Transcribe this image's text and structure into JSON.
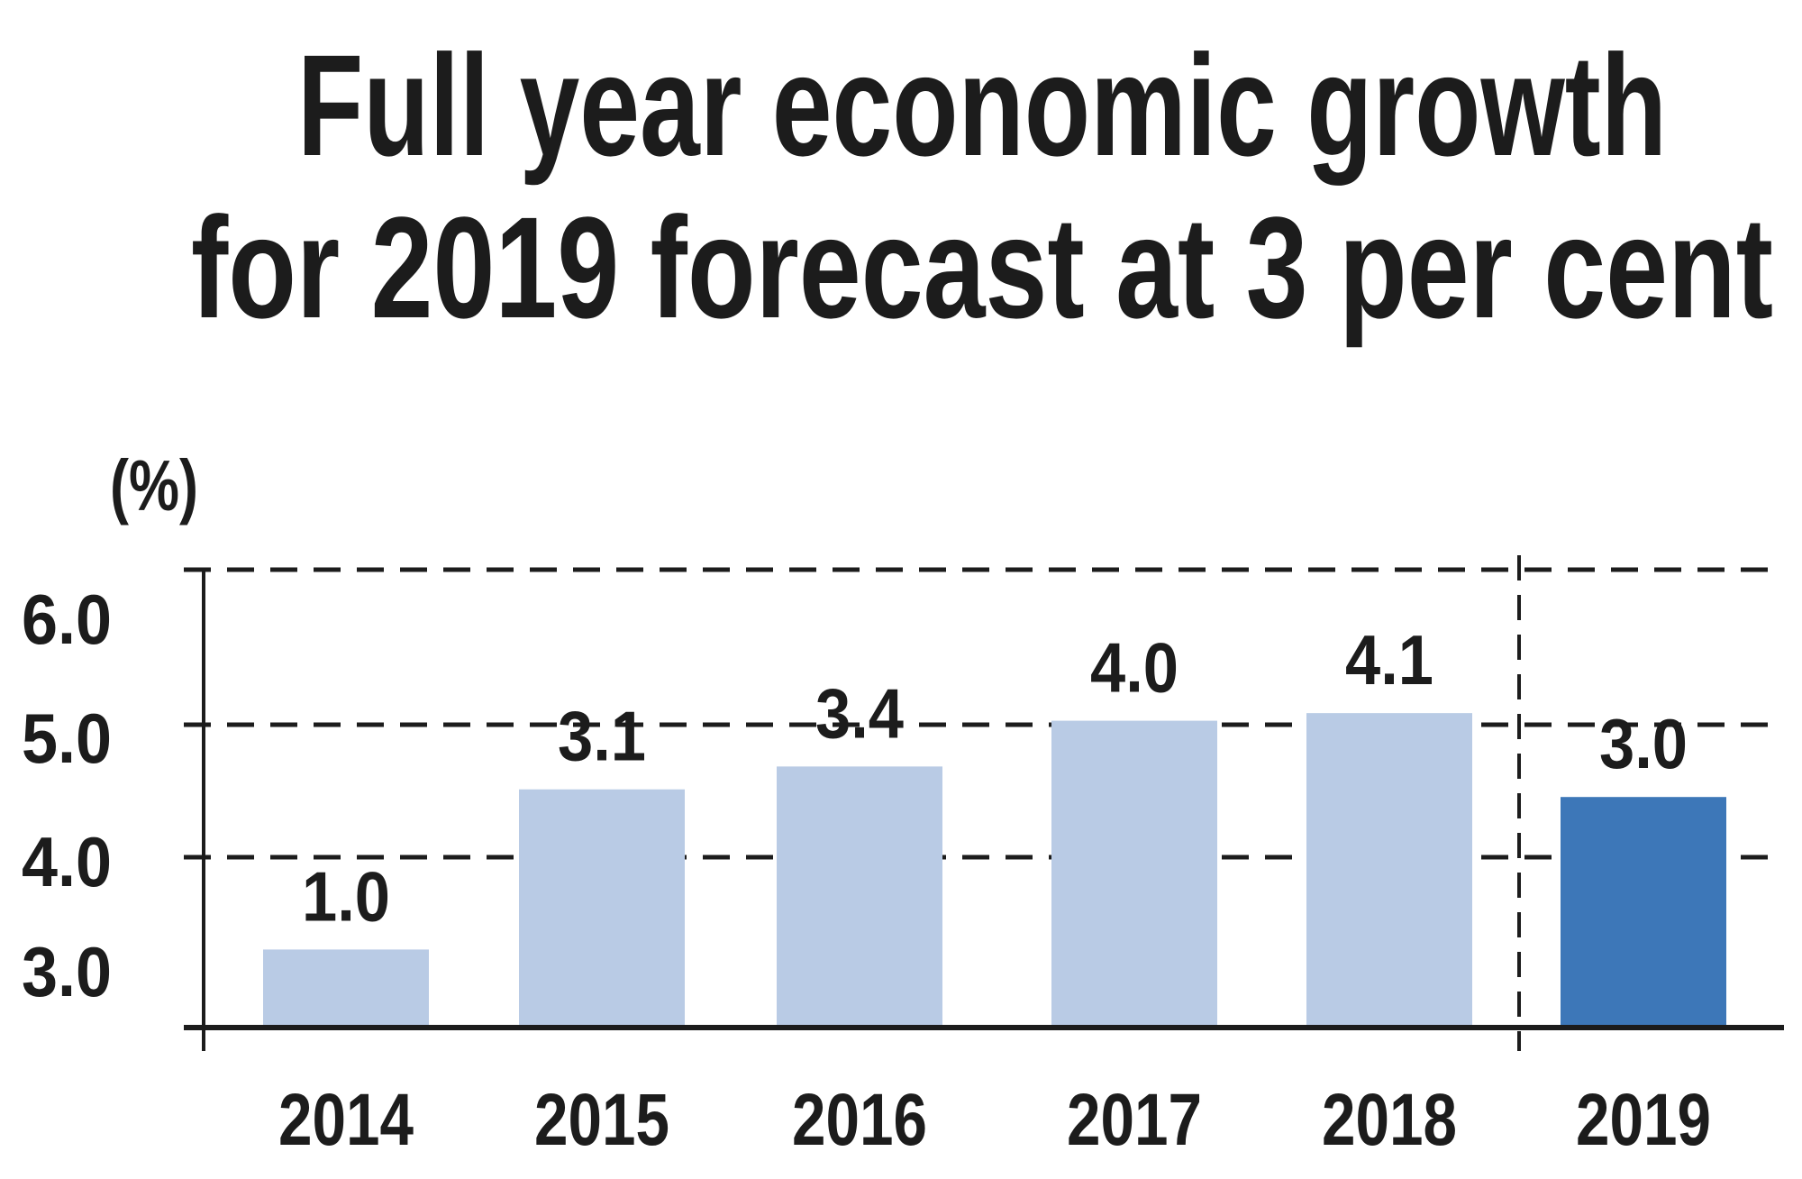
{
  "chart_data": {
    "type": "bar",
    "title_lines": [
      "Full year economic growth",
      "for 2019 forecast at 3 per cent"
    ],
    "unit_label": "(%)",
    "categories": [
      "2014",
      "2015",
      "2016",
      "2017",
      "2018",
      "2019"
    ],
    "values": [
      1.0,
      3.1,
      3.4,
      4.0,
      4.1,
      3.0
    ],
    "value_labels": [
      "1.0",
      "3.1",
      "3.4",
      "4.0",
      "4.1",
      "3.0"
    ],
    "y_tick_labels": [
      "6.0",
      "5.0",
      "4.0",
      "3.0"
    ],
    "grid": "dashed horizontal",
    "forecast_category": "2019",
    "colors": {
      "actual": "#b9cbe5",
      "forecast": "#3d77b8",
      "text": "#1c1c1c"
    }
  }
}
